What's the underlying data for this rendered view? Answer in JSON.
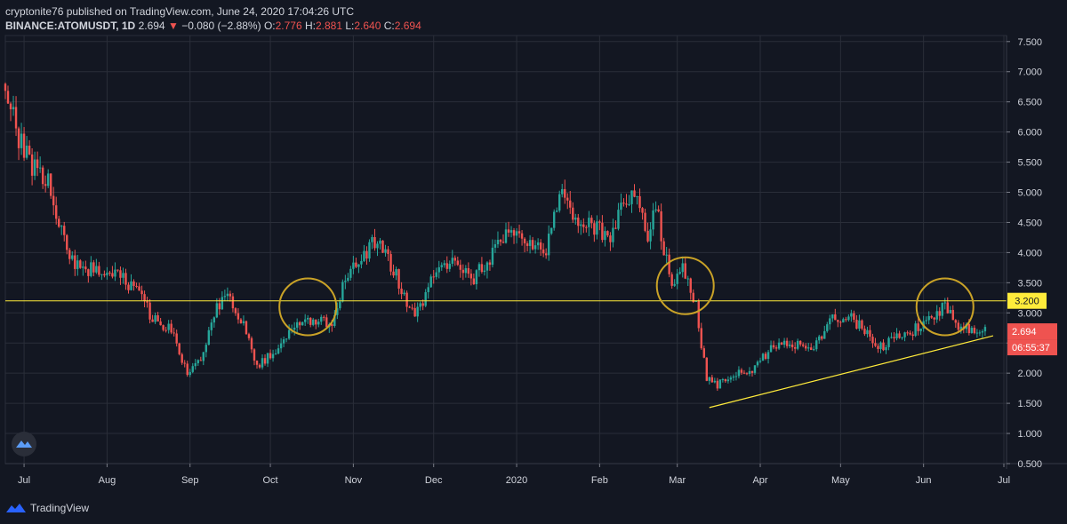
{
  "header": {
    "publisher_line": "cryptonite76 published on TradingView.com, June 24, 2020 17:04:26 UTC",
    "symbol": "BINANCE:ATOMUSDT, 1D",
    "last": "2.694",
    "change_arrow": "▼",
    "change": "−0.080 (−2.88%)",
    "o_label": "O:",
    "o": "2.776",
    "h_label": "H:",
    "h": "2.881",
    "l_label": "L:",
    "l": "2.640",
    "c_label": "C:",
    "c": "2.694"
  },
  "footer": {
    "brand": "TradingView",
    "logo_icon": "tradingview-logo-icon"
  },
  "colors": {
    "background": "#131722",
    "grid": "#2a2e39",
    "up": "#26a69a",
    "down": "#ef5350",
    "horizontal_line": "#ffeb3b",
    "trendline": "#ffeb3b",
    "circle": "#c9a227",
    "text": "#d1d4dc"
  },
  "chart_data": {
    "type": "candlestick",
    "y_ticks": [
      "7.500",
      "7.000",
      "6.500",
      "6.000",
      "5.500",
      "5.000",
      "4.500",
      "4.000",
      "3.500",
      "3.000",
      "2.500",
      "2.000",
      "1.500",
      "1.000",
      "0.500"
    ],
    "x_ticks": [
      "Jul",
      "Aug",
      "Sep",
      "Oct",
      "Nov",
      "Dec",
      "2020",
      "Feb",
      "Mar",
      "Apr",
      "May",
      "Jun",
      "Jul"
    ],
    "x_tick_dates": [
      "2019-07-01",
      "2019-08-01",
      "2019-09-01",
      "2019-10-01",
      "2019-11-01",
      "2019-12-01",
      "2020-01-01",
      "2020-02-01",
      "2020-03-01",
      "2020-04-01",
      "2020-05-01",
      "2020-06-01",
      "2020-07-01"
    ],
    "x_range": [
      "2019-06-24",
      "2020-07-02"
    ],
    "ylim": [
      0.5,
      7.6
    ],
    "price_path": [
      [
        "2019-06-24",
        6.8
      ],
      [
        "2019-06-28",
        6.0
      ],
      [
        "2019-07-03",
        5.5
      ],
      [
        "2019-07-10",
        5.2
      ],
      [
        "2019-07-15",
        4.3
      ],
      [
        "2019-07-20",
        3.8
      ],
      [
        "2019-07-27",
        3.7
      ],
      [
        "2019-08-05",
        3.6
      ],
      [
        "2019-08-12",
        3.4
      ],
      [
        "2019-08-18",
        2.9
      ],
      [
        "2019-08-25",
        2.7
      ],
      [
        "2019-08-31",
        2.0
      ],
      [
        "2019-09-05",
        2.2
      ],
      [
        "2019-09-10",
        3.0
      ],
      [
        "2019-09-15",
        3.3
      ],
      [
        "2019-09-21",
        2.8
      ],
      [
        "2019-09-26",
        2.1
      ],
      [
        "2019-10-03",
        2.4
      ],
      [
        "2019-10-10",
        2.8
      ],
      [
        "2019-10-18",
        2.9
      ],
      [
        "2019-10-24",
        2.8
      ],
      [
        "2019-10-28",
        3.4
      ],
      [
        "2019-11-03",
        3.9
      ],
      [
        "2019-11-10",
        4.2
      ],
      [
        "2019-11-16",
        3.7
      ],
      [
        "2019-11-22",
        3.1
      ],
      [
        "2019-11-25",
        3.0
      ],
      [
        "2019-12-01",
        3.6
      ],
      [
        "2019-12-08",
        3.9
      ],
      [
        "2019-12-16",
        3.6
      ],
      [
        "2019-12-22",
        3.9
      ],
      [
        "2019-12-28",
        4.3
      ],
      [
        "2020-01-06",
        4.2
      ],
      [
        "2020-01-12",
        4.0
      ],
      [
        "2020-01-17",
        5.0
      ],
      [
        "2020-01-22",
        4.6
      ],
      [
        "2020-01-30",
        4.4
      ],
      [
        "2020-02-05",
        4.3
      ],
      [
        "2020-02-10",
        4.8
      ],
      [
        "2020-02-14",
        5.0
      ],
      [
        "2020-02-19",
        4.3
      ],
      [
        "2020-02-22",
        4.8
      ],
      [
        "2020-02-25",
        4.0
      ],
      [
        "2020-02-28",
        3.5
      ],
      [
        "2020-03-03",
        3.8
      ],
      [
        "2020-03-08",
        3.1
      ],
      [
        "2020-03-12",
        1.9
      ],
      [
        "2020-03-16",
        1.8
      ],
      [
        "2020-03-22",
        2.0
      ],
      [
        "2020-03-28",
        2.0
      ],
      [
        "2020-04-05",
        2.4
      ],
      [
        "2020-04-13",
        2.5
      ],
      [
        "2020-04-20",
        2.4
      ],
      [
        "2020-04-28",
        2.9
      ],
      [
        "2020-05-05",
        2.9
      ],
      [
        "2020-05-10",
        2.7
      ],
      [
        "2020-05-15",
        2.4
      ],
      [
        "2020-05-22",
        2.6
      ],
      [
        "2020-05-28",
        2.7
      ],
      [
        "2020-06-03",
        2.9
      ],
      [
        "2020-06-09",
        3.1
      ],
      [
        "2020-06-13",
        2.8
      ],
      [
        "2020-06-18",
        2.7
      ],
      [
        "2020-06-24",
        2.694
      ]
    ],
    "horizontal_line": {
      "price": 3.2,
      "label": "3.200"
    },
    "last_price_label": "2.694",
    "countdown_label": "06:55:37",
    "trendline": {
      "from": [
        "2020-03-13",
        1.43
      ],
      "to": [
        "2020-06-27",
        2.62
      ]
    },
    "circles": [
      {
        "date": "2019-10-15",
        "price": 3.1
      },
      {
        "date": "2020-03-04",
        "price": 3.45
      },
      {
        "date": "2020-06-09",
        "price": 3.1
      }
    ]
  }
}
